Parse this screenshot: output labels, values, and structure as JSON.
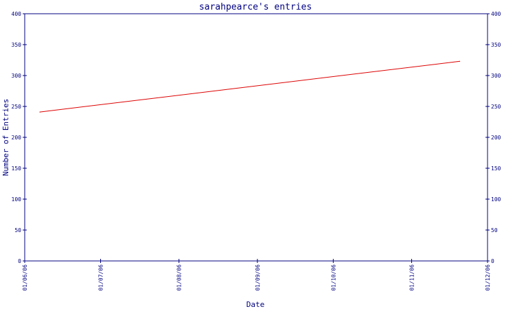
{
  "chart_data": {
    "type": "line",
    "title": "sarahpearce's entries",
    "xlabel": "Date",
    "ylabel": "Number of Entries",
    "x_tick_labels": [
      "01/06/06",
      "01/07/06",
      "01/08/06",
      "01/09/06",
      "01/10/06",
      "01/11/06",
      "01/12/06"
    ],
    "xlim": [
      "01/06/06",
      "01/12/06"
    ],
    "ylim": [
      0,
      400
    ],
    "y_ticks": [
      "0",
      "50",
      "100",
      "150",
      "200",
      "250",
      "300",
      "350",
      "400"
    ],
    "grid": false,
    "series": [
      {
        "color": "#dd0000",
        "x": [
          "07/06/06",
          "20/11/06"
        ],
        "y": [
          241,
          323
        ]
      }
    ]
  },
  "colors": {
    "axis": "#000080",
    "title": "#000080",
    "line": "#dd0000"
  }
}
